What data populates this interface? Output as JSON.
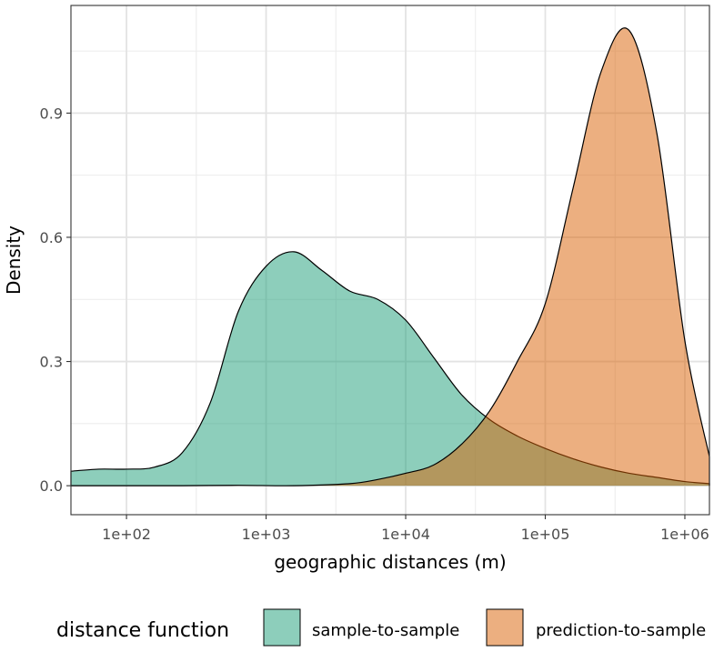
{
  "chart_data": {
    "type": "area",
    "xlabel": "geographic distances (m)",
    "ylabel": "Density",
    "x_scale": "log10",
    "xlim": [
      40,
      1500000
    ],
    "ylim": [
      -0.07,
      1.16
    ],
    "x_ticks": [
      {
        "value": 100,
        "label": "1e+02"
      },
      {
        "value": 1000,
        "label": "1e+03"
      },
      {
        "value": 10000,
        "label": "1e+04"
      },
      {
        "value": 100000,
        "label": "1e+05"
      },
      {
        "value": 1000000,
        "label": "1e+06"
      }
    ],
    "y_ticks": [
      {
        "value": 0.0,
        "label": "0.0"
      },
      {
        "value": 0.3,
        "label": "0.3"
      },
      {
        "value": 0.6,
        "label": "0.6"
      },
      {
        "value": 0.9,
        "label": "0.9"
      }
    ],
    "grid": true,
    "legend": {
      "title": "distance function",
      "position": "bottom"
    },
    "series": [
      {
        "name": "sample-to-sample",
        "color": "#1b9e77",
        "x": [
          40,
          63,
          100,
          159,
          251,
          398,
          631,
          1000,
          1585,
          2512,
          3981,
          6310,
          10000,
          15849,
          25119,
          39811,
          63096,
          100000,
          158489,
          251189,
          398107,
          630957,
          1000000,
          1500000
        ],
        "values": [
          0.035,
          0.04,
          0.04,
          0.045,
          0.08,
          0.2,
          0.42,
          0.53,
          0.565,
          0.52,
          0.47,
          0.45,
          0.4,
          0.31,
          0.22,
          0.16,
          0.12,
          0.09,
          0.065,
          0.045,
          0.03,
          0.02,
          0.01,
          0.005
        ]
      },
      {
        "name": "prediction-to-sample",
        "color": "#d95f02",
        "x": [
          40,
          100,
          251,
          631,
          1585,
          3981,
          6310,
          10000,
          15849,
          25119,
          39811,
          63096,
          100000,
          158489,
          251189,
          398107,
          630957,
          1000000,
          1500000
        ],
        "values": [
          0.0,
          0.0,
          0.0,
          0.001,
          0.0,
          0.005,
          0.015,
          0.03,
          0.05,
          0.1,
          0.18,
          0.3,
          0.44,
          0.72,
          1.0,
          1.1,
          0.85,
          0.35,
          0.07
        ]
      }
    ]
  }
}
